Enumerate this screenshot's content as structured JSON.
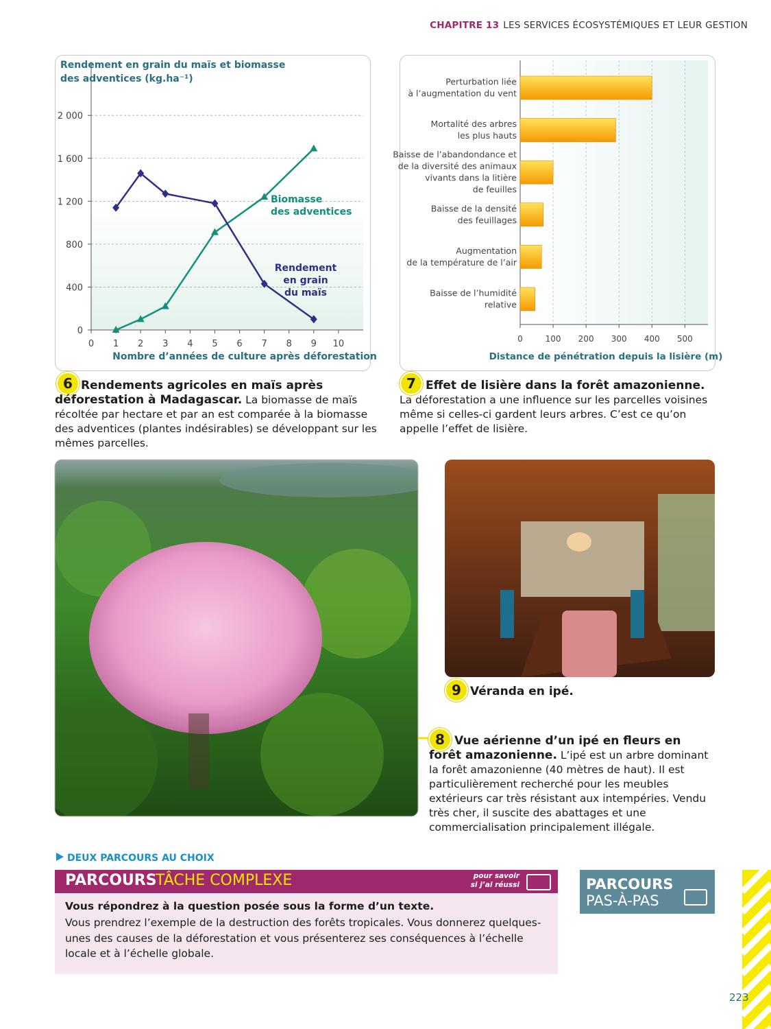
{
  "header": {
    "chapter": "CHAPITRE 13",
    "title": "LES SERVICES ÉCOSYSTÉMIQUES ET LEUR GESTION"
  },
  "chart_data": [
    {
      "type": "line",
      "y_label": [
        "Rendement en grain du maïs et biomasse",
        "des adventices (kg.ha⁻¹)"
      ],
      "x_label": "Nombre d’années de culture après déforestation",
      "xlim": [
        0,
        11
      ],
      "xticks": [
        0,
        1,
        2,
        3,
        4,
        5,
        6,
        7,
        8,
        9,
        10
      ],
      "ylim": [
        0,
        2500
      ],
      "yticks": [
        0,
        400,
        800,
        {
          "value": 1200,
          "label": "1 200"
        },
        {
          "value": 1600,
          "label": "1 600"
        },
        {
          "value": 2000,
          "label": "2 000"
        }
      ],
      "grid": true,
      "series": [
        {
          "name": "Biomasse des adventices",
          "color": "#12907c",
          "marker": "triangle",
          "x": [
            1,
            2,
            3,
            5,
            7,
            9
          ],
          "values": [
            0,
            100,
            220,
            910,
            1240,
            1690
          ]
        },
        {
          "name": "Rendement en grain du maïs",
          "color": "#2e2f86",
          "marker": "diamond",
          "x": [
            1,
            2,
            3,
            5,
            7,
            9
          ],
          "values": [
            1140,
            1460,
            1270,
            1180,
            430,
            100
          ]
        }
      ]
    },
    {
      "type": "hbar",
      "x_label": "Distance de pénétration depuis la lisière (m)",
      "categories": [
        "Perturbation liée\nà l’augmentation du vent",
        "Mortalité des arbres\nles plus hauts",
        "Baisse de l’abandondance et\nde la diversité des animaux\nvivants dans la litière\nde feuilles",
        "Baisse de la densité\ndes feuillages",
        "Augmentation\nde la température de l’air",
        "Baisse de l’humidité\nrelative"
      ],
      "values": [
        400,
        290,
        100,
        70,
        65,
        45
      ],
      "color": "#f7b500",
      "xlim": [
        0,
        570
      ],
      "xticks": [
        0,
        100,
        200,
        300,
        400,
        500
      ],
      "grid": true
    }
  ],
  "documents": [
    {
      "number": "6",
      "title": "Rendements agricoles en maïs après déforestation à Madagascar.",
      "text": "La biomasse de maïs récoltée par hectare et par an est comparée à la biomasse des adventices (plantes indésirables) se développant sur les mêmes parcelles."
    },
    {
      "number": "7",
      "title": "Effet de lisière dans la forêt amazonienne.",
      "text": "La déforestation a une influence sur les parcelles voisines même si celles-ci gardent leurs arbres. C’est ce qu’on appelle l’effet de lisière."
    },
    {
      "number": "8",
      "title": "Vue aérienne d’un ipé en fleurs en forêt amazonienne.",
      "text": "L’ipé est un arbre dominant la forêt amazonienne (40 mètres de haut). Il est particulièrement recherché pour les meubles extérieurs car très résistant aux intempéries. Vendu très cher, il suscite des abattages et une commercialisation principalement illégale."
    },
    {
      "number": "9",
      "title": "Véranda en ipé."
    }
  ],
  "choice": {
    "heading": "DEUX PARCOURS AU CHOIX",
    "complex": {
      "label": "PARCOURS",
      "name": "TÂCHE COMPLEXE",
      "hint": [
        "pour savoir",
        "si j’ai réussi"
      ],
      "question": "Vous répondrez à la question posée sous la forme d’un texte.",
      "text": "Vous prendrez l’exemple de la destruction des forêts tropicales. Vous donnerez quelques-unes des causes de la déforestation et vous présenterez ses conséquences à l’échelle locale et à l’échelle globale."
    },
    "step": {
      "label": "PARCOURS",
      "name": "PAS-À-PAS"
    }
  },
  "page_number": "223"
}
